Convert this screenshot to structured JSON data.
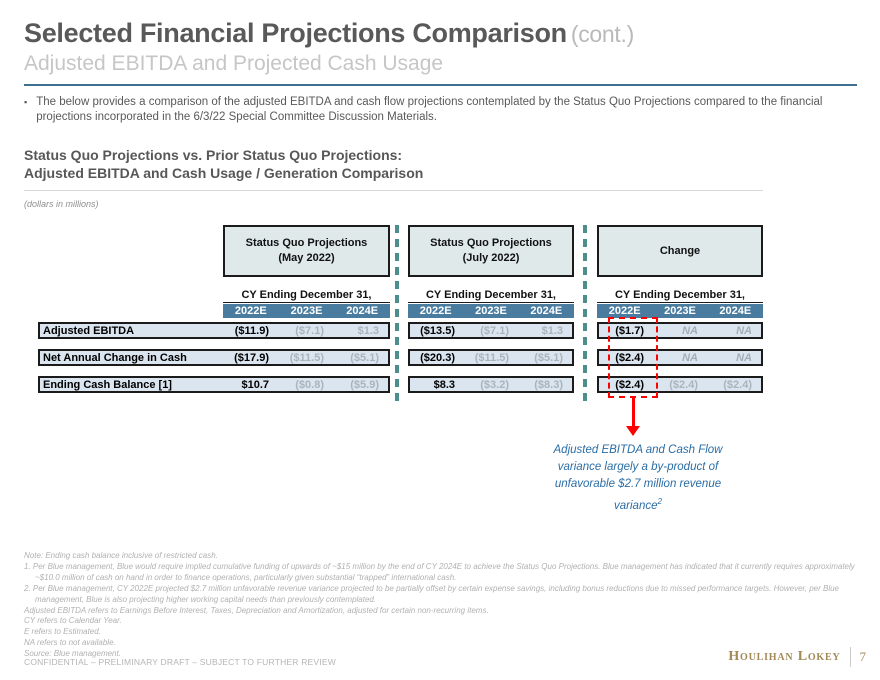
{
  "slide": {
    "title": "Selected Financial Projections Comparison",
    "title_suffix": "(cont.)",
    "subtitle": "Adjusted EBITDA and Projected Cash Usage",
    "bullet": "The below provides a comparison of the adjusted EBITDA and cash flow projections contemplated by the Status Quo Projections compared to the financial projections incorporated in the 6/3/22 Special Committee Discussion Materials."
  },
  "section": {
    "heading_line1": "Status Quo Projections vs. Prior Status Quo Projections:",
    "heading_line2": "Adjusted EBITDA and Cash Usage / Generation Comparison",
    "units_note": "(dollars in millions)"
  },
  "table": {
    "period_header": "CY Ending December 31,",
    "years": [
      "2022E",
      "2023E",
      "2024E"
    ],
    "groups": [
      {
        "title_line1": "Status Quo Projections",
        "title_line2": "(May 2022)"
      },
      {
        "title_line1": "Status Quo Projections",
        "title_line2": "(July 2022)"
      },
      {
        "title_line1": "Change",
        "title_line2": ""
      }
    ],
    "rows": [
      {
        "label": "Adjusted EBITDA",
        "may": [
          "($11.9)",
          "($7.1)",
          "$1.3"
        ],
        "july": [
          "($13.5)",
          "($7.1)",
          "$1.3"
        ],
        "change": [
          "($1.7)",
          "NA",
          "NA"
        ]
      },
      {
        "label": "Net Annual Change in Cash",
        "may": [
          "($17.9)",
          "($11.5)",
          "($5.1)"
        ],
        "july": [
          "($20.3)",
          "($11.5)",
          "($5.1)"
        ],
        "change": [
          "($2.4)",
          "NA",
          "NA"
        ]
      },
      {
        "label": "Ending Cash Balance [1]",
        "may": [
          "$10.7",
          "($0.8)",
          "($5.9)"
        ],
        "july": [
          "$8.3",
          "($3.2)",
          "($8.3)"
        ],
        "change": [
          "($2.4)",
          "($2.4)",
          "($2.4)"
        ]
      }
    ]
  },
  "callout": {
    "line1": "Adjusted EBITDA and Cash Flow",
    "line2": "variance largely a by-product of",
    "line3": "unfavorable $2.7 million revenue",
    "line4": "variance",
    "superscript": "2"
  },
  "footnotes": [
    "Note: Ending cash balance inclusive of restricted cash.",
    "1.  Per Blue management, Blue would require implied cumulative funding of upwards of ~$15 million by the end of CY 2024E to achieve the Status Quo Projections. Blue management has indicated that it currently requires approximately ~$10.0 million of cash on hand in order to finance operations, particularly given substantial “trapped” international cash.",
    "2.  Per Blue management, CY 2022E projected $2.7 million unfavorable revenue variance projected to be partially offset by certain expense savings, including bonus reductions due to missed performance targets. However, per Blue management, Blue is also projecting higher working capital needs than previously contemplated.",
    "Adjusted EBITDA refers to Earnings Before Interest, Taxes, Depreciation and Amortization, adjusted for certain non-recurring items.",
    "CY refers to Calendar Year.",
    "E refers to Estimated.",
    "NA refers to not available.",
    "Source: Blue management."
  ],
  "footer": {
    "confidential": "CONFIDENTIAL – PRELIMINARY DRAFT – SUBJECT TO FURTHER REVIEW",
    "brand": "Houlihan Lokey",
    "page": "7"
  },
  "colors": {
    "year_bar_blue": "#4a7ca0",
    "row_fill_blue": "#dbe5ef",
    "group_box_fill": "#dfe9e9",
    "teal_dash": "#4c8e8e",
    "red_highlight": "#fe0000",
    "callout_blue": "#2a6da6",
    "brand_gold": "#a28a58"
  }
}
